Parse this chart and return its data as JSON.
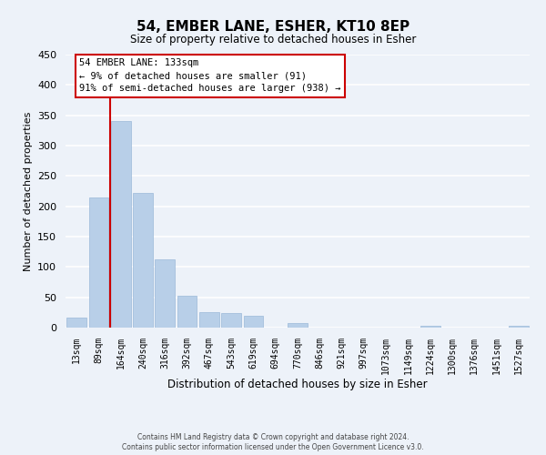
{
  "title": "54, EMBER LANE, ESHER, KT10 8EP",
  "subtitle": "Size of property relative to detached houses in Esher",
  "xlabel": "Distribution of detached houses by size in Esher",
  "ylabel": "Number of detached properties",
  "bar_labels": [
    "13sqm",
    "89sqm",
    "164sqm",
    "240sqm",
    "316sqm",
    "392sqm",
    "467sqm",
    "543sqm",
    "619sqm",
    "694sqm",
    "770sqm",
    "846sqm",
    "921sqm",
    "997sqm",
    "1073sqm",
    "1149sqm",
    "1224sqm",
    "1300sqm",
    "1376sqm",
    "1451sqm",
    "1527sqm"
  ],
  "bar_values": [
    17,
    215,
    340,
    222,
    113,
    53,
    25,
    24,
    20,
    0,
    7,
    0,
    0,
    0,
    0,
    0,
    3,
    0,
    0,
    0,
    3
  ],
  "bar_color": "#b8cfe8",
  "bar_edge_color": "#9ab8d8",
  "background_color": "#edf2f9",
  "grid_color": "#ffffff",
  "ylim": [
    0,
    450
  ],
  "yticks": [
    0,
    50,
    100,
    150,
    200,
    250,
    300,
    350,
    400,
    450
  ],
  "red_line_bar_index": 2,
  "annotation_title": "54 EMBER LANE: 133sqm",
  "annotation_line1": "← 9% of detached houses are smaller (91)",
  "annotation_line2": "91% of semi-detached houses are larger (938) →",
  "annotation_box_facecolor": "#ffffff",
  "annotation_box_edgecolor": "#cc0000",
  "footer1": "Contains HM Land Registry data © Crown copyright and database right 2024.",
  "footer2": "Contains public sector information licensed under the Open Government Licence v3.0."
}
